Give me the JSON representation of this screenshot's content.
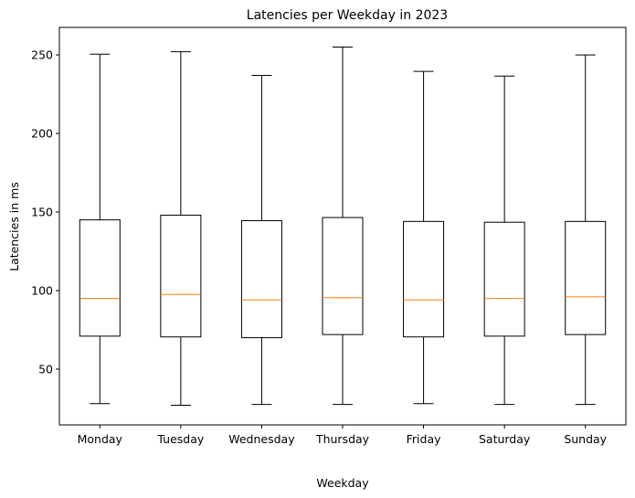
{
  "chart_data": {
    "type": "box",
    "title": "Latencies per Weekday in 2023",
    "xlabel": "Weekday",
    "ylabel": "Latencies in ms",
    "categories": [
      "Monday",
      "Tuesday",
      "Wednesday",
      "Thursday",
      "Friday",
      "Saturday",
      "Sunday"
    ],
    "boxes": [
      {
        "category": "Monday",
        "whisker_low": 28,
        "q1": 71,
        "median": 95,
        "q3": 145,
        "whisker_high": 250.5
      },
      {
        "category": "Tuesday",
        "whisker_low": 27,
        "q1": 70.5,
        "median": 97.5,
        "q3": 148,
        "whisker_high": 252
      },
      {
        "category": "Wednesday",
        "whisker_low": 27.5,
        "q1": 70,
        "median": 94,
        "q3": 144.5,
        "whisker_high": 237
      },
      {
        "category": "Thursday",
        "whisker_low": 27.5,
        "q1": 72,
        "median": 95.5,
        "q3": 146.5,
        "whisker_high": 255
      },
      {
        "category": "Friday",
        "whisker_low": 28,
        "q1": 70.5,
        "median": 94,
        "q3": 144,
        "whisker_high": 239.5
      },
      {
        "category": "Saturday",
        "whisker_low": 27.5,
        "q1": 71,
        "median": 95,
        "q3": 143.5,
        "whisker_high": 236.5
      },
      {
        "category": "Sunday",
        "whisker_low": 27.5,
        "q1": 72,
        "median": 96,
        "q3": 144,
        "whisker_high": 250
      }
    ],
    "ylim": [
      14.5,
      267.5
    ],
    "yticks": [
      50,
      100,
      150,
      200,
      250
    ],
    "grid": false,
    "colors": {
      "box": "#000000",
      "median": "#ff7f0e"
    }
  }
}
